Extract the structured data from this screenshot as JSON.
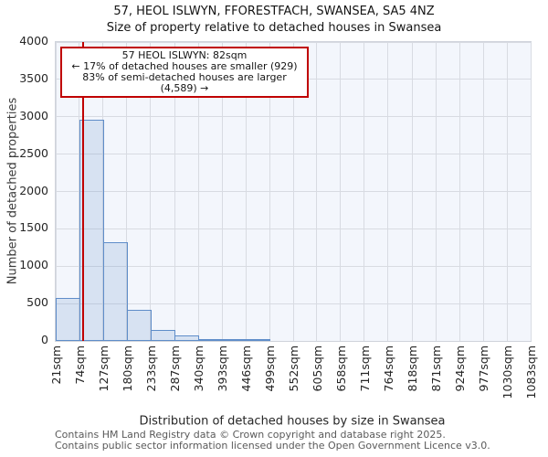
{
  "header": {
    "title": "57, HEOL ISLWYN, FFORESTFACH, SWANSEA, SA5 4NZ",
    "subtitle": "Size of property relative to detached houses in Swansea"
  },
  "annotation": {
    "line1": "57 HEOL ISLWYN: 82sqm",
    "line2": "← 17% of detached houses are smaller (929)",
    "line3": "83% of semi-detached houses are larger (4,589) →"
  },
  "y_axis": {
    "label": "Number of detached properties",
    "ticks": [
      0,
      500,
      1000,
      1500,
      2000,
      2500,
      3000,
      3500,
      4000
    ]
  },
  "x_axis": {
    "label": "Distribution of detached houses by size in Swansea",
    "tick_labels": [
      "21sqm",
      "74sqm",
      "127sqm",
      "180sqm",
      "233sqm",
      "287sqm",
      "340sqm",
      "393sqm",
      "446sqm",
      "499sqm",
      "552sqm",
      "605sqm",
      "658sqm",
      "711sqm",
      "764sqm",
      "818sqm",
      "871sqm",
      "924sqm",
      "977sqm",
      "1030sqm",
      "1083sqm"
    ]
  },
  "footer": {
    "line1": "Contains HM Land Registry data © Crown copyright and database right 2025.",
    "line2": "Contains public sector information licensed under the Open Government Licence v3.0."
  },
  "colors": {
    "bar_fill": "rgba(91,138,198,0.18)",
    "bar_edge": "#5f8dc9",
    "marker_red": "#c00000",
    "plot_background": "#f3f6fc",
    "gridline": "#d8dbe2",
    "footer_text": "#5a5a5a"
  },
  "chart_data": {
    "type": "bar",
    "title": "Size of property relative to detached houses in Swansea",
    "xlabel": "Distribution of detached houses by size in Swansea",
    "ylabel": "Number of detached properties",
    "bin_edges_sqm": [
      21,
      74,
      127,
      180,
      233,
      287,
      340,
      393,
      446,
      499,
      552,
      605,
      658,
      711,
      764,
      818,
      871,
      924,
      977,
      1030,
      1083
    ],
    "values": [
      575,
      2960,
      1320,
      410,
      150,
      75,
      25,
      12,
      6,
      0,
      0,
      0,
      0,
      0,
      0,
      0,
      0,
      0,
      0,
      0
    ],
    "xlim": [
      21,
      1083
    ],
    "ylim": [
      0,
      4000
    ],
    "y_tick_step": 500,
    "grid": true,
    "legend": null,
    "marker": {
      "label": "57 HEOL ISLWYN",
      "value_sqm": 82,
      "smaller_pct": 17,
      "smaller_count": 929,
      "larger_pct": 83,
      "larger_count": 4589
    }
  }
}
